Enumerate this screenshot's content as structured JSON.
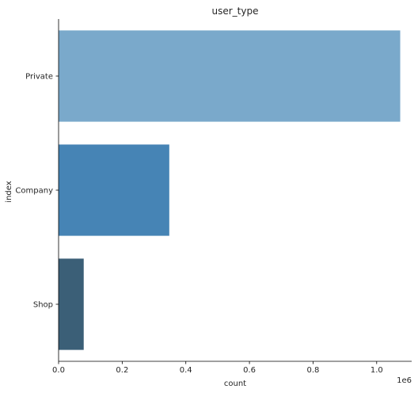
{
  "chart_data": {
    "type": "bar",
    "orientation": "horizontal",
    "title": "user_type",
    "xlabel": "count",
    "ylabel": "index",
    "x_scale_label": "1e6",
    "categories": [
      "Private",
      "Company",
      "Shop"
    ],
    "values": [
      1074000,
      348000,
      79000
    ],
    "bar_colors": [
      "#7aa9cb",
      "#4684b5",
      "#3b5f77"
    ],
    "xlim": [
      0,
      1110000
    ],
    "xticks": [
      0,
      200000,
      400000,
      600000,
      800000,
      1000000
    ],
    "xtick_labels": [
      "0.0",
      "0.2",
      "0.4",
      "0.6",
      "0.8",
      "1.0"
    ],
    "grid": false,
    "legend": "none"
  }
}
